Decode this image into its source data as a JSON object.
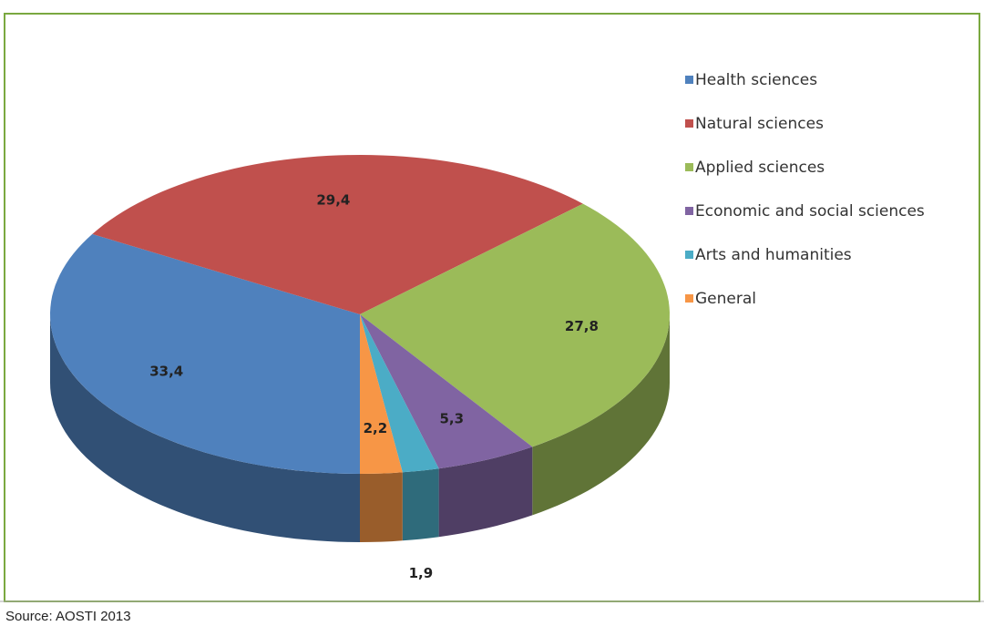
{
  "chart_data": {
    "type": "pie3d",
    "categories": [
      "Health sciences",
      "Natural sciences",
      "Applied sciences",
      "Economic and social sciences",
      "Arts and humanities",
      "General"
    ],
    "values": [
      33.4,
      29.4,
      27.8,
      5.3,
      1.9,
      2.2
    ],
    "value_labels": [
      "33,4",
      "29,4",
      "27,8",
      "5,3",
      "1,9",
      "2,2"
    ],
    "colors": [
      "#4f81bd",
      "#c0504d",
      "#9bbb59",
      "#8064a2",
      "#4bacc6",
      "#f79646"
    ],
    "legend": "right",
    "source": "Source: AOSTI 2013"
  }
}
